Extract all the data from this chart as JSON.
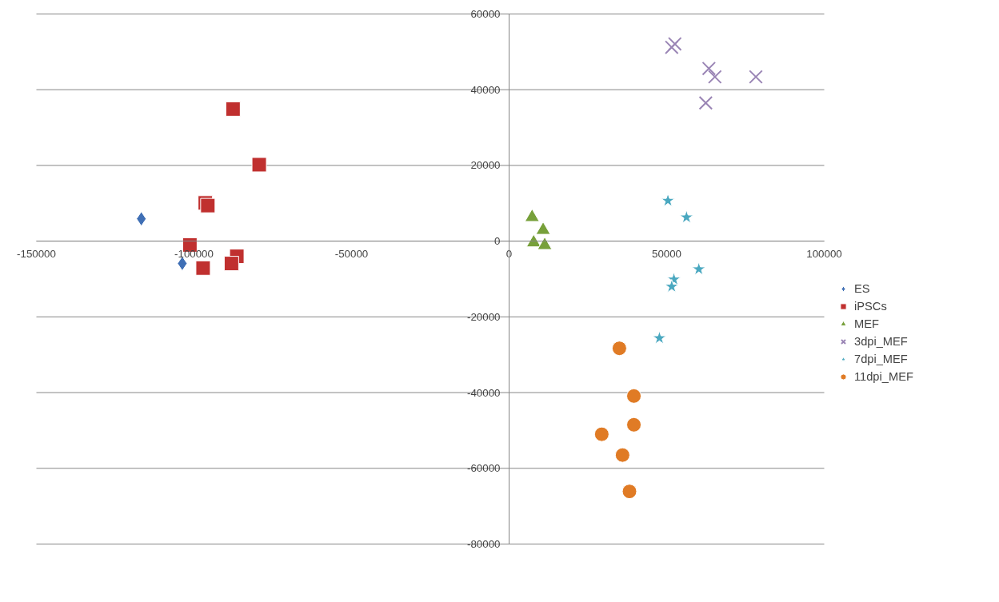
{
  "chart_data": {
    "type": "scatter",
    "xlim": [
      -150000,
      100000
    ],
    "ylim": [
      -80000,
      60000
    ],
    "xticks": [
      -150000,
      -100000,
      -50000,
      0,
      50000,
      100000
    ],
    "yticks": [
      -80000,
      -60000,
      -40000,
      -20000,
      0,
      20000,
      40000,
      60000
    ],
    "grid": "y",
    "legend": "right",
    "series": [
      {
        "name": "ES",
        "color": "#3f6fb5",
        "marker": "diamond",
        "x": [
          -116700,
          -103700
        ],
        "values": [
          5900,
          -5900
        ]
      },
      {
        "name": "iPSCs",
        "color": "#c0302f",
        "marker": "square",
        "x": [
          -87600,
          -79300,
          -96400,
          -95600,
          -101300,
          -97100,
          -86400,
          -88100
        ],
        "values": [
          34900,
          20200,
          10100,
          9400,
          -1000,
          -7100,
          -4000,
          -5900
        ]
      },
      {
        "name": "MEF",
        "color": "#77a03a",
        "marker": "triangle",
        "x": [
          7300,
          10800,
          7800,
          11300
        ],
        "values": [
          6300,
          2900,
          -400,
          -1100
        ]
      },
      {
        "name": "3dpi_MEF",
        "color": "#9a85b5",
        "marker": "cross",
        "x": [
          52600,
          51600,
          63400,
          65300,
          78300,
          62400
        ],
        "values": [
          52100,
          51200,
          45600,
          43400,
          43400,
          36500
        ]
      },
      {
        "name": "7dpi_MEF",
        "color": "#4aa8c0",
        "marker": "star",
        "x": [
          50400,
          56300,
          60200,
          52300,
          51600,
          47700
        ],
        "values": [
          10700,
          6300,
          -7400,
          -10100,
          -12000,
          -25600
        ]
      },
      {
        "name": "11dpi_MEF",
        "color": "#e07b25",
        "marker": "circle",
        "x": [
          35000,
          39600,
          39600,
          29400,
          36000,
          38200
        ],
        "values": [
          -28300,
          -40900,
          -48500,
          -51000,
          -56500,
          -66100
        ]
      }
    ]
  }
}
